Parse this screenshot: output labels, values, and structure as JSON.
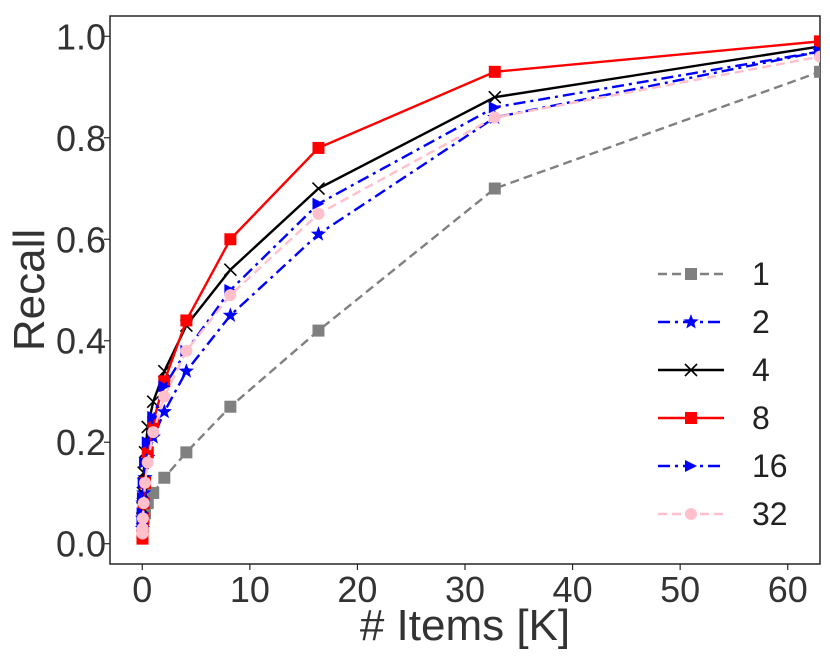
{
  "chart_data": {
    "type": "line",
    "title": "",
    "xlabel": "# Items [K]",
    "ylabel": "Recall",
    "xlim": [
      -3,
      63
    ],
    "ylim": [
      -0.04,
      1.04
    ],
    "xticks": [
      0,
      10,
      20,
      30,
      40,
      50,
      60
    ],
    "xtick_labels": [
      "0",
      "10",
      "20",
      "30",
      "40",
      "50",
      "60"
    ],
    "yticks": [
      0.0,
      0.2,
      0.4,
      0.6,
      0.8,
      1.0
    ],
    "ytick_labels": [
      "0.0",
      "0.2",
      "0.4",
      "0.6",
      "0.8",
      "1.0"
    ],
    "grid": false,
    "legend_position": "lower-right",
    "series": [
      {
        "name": "1",
        "color": "#808080",
        "dash": "dashed",
        "marker": "square",
        "x": [
          0.02,
          0.03,
          0.06,
          0.13,
          0.26,
          0.51,
          1.02,
          2.05,
          4.1,
          8.19,
          16.38,
          32.77,
          63
        ],
        "y": [
          0.02,
          0.03,
          0.04,
          0.05,
          0.06,
          0.08,
          0.1,
          0.13,
          0.18,
          0.27,
          0.42,
          0.7,
          0.93
        ]
      },
      {
        "name": "2",
        "color": "#0000ff",
        "dash": "dashdot",
        "marker": "star",
        "x": [
          0.02,
          0.03,
          0.06,
          0.13,
          0.26,
          0.51,
          1.02,
          2.05,
          4.1,
          8.19,
          16.38,
          32.77,
          63
        ],
        "y": [
          0.03,
          0.05,
          0.08,
          0.1,
          0.13,
          0.17,
          0.21,
          0.26,
          0.34,
          0.45,
          0.61,
          0.84,
          0.97
        ]
      },
      {
        "name": "4",
        "color": "#000000",
        "dash": "solid",
        "marker": "x",
        "x": [
          0.02,
          0.03,
          0.06,
          0.13,
          0.26,
          0.51,
          1.02,
          2.05,
          4.1,
          8.19,
          16.38,
          32.77,
          63
        ],
        "y": [
          0.05,
          0.07,
          0.1,
          0.14,
          0.18,
          0.23,
          0.28,
          0.34,
          0.43,
          0.54,
          0.7,
          0.88,
          0.98
        ]
      },
      {
        "name": "8",
        "color": "#ff0000",
        "dash": "solid",
        "marker": "square",
        "x": [
          0.02,
          0.03,
          0.06,
          0.13,
          0.26,
          0.51,
          1.02,
          2.05,
          4.1,
          8.19,
          16.38,
          32.77,
          63
        ],
        "y": [
          0.01,
          0.03,
          0.05,
          0.08,
          0.12,
          0.18,
          0.24,
          0.32,
          0.44,
          0.6,
          0.78,
          0.93,
          0.99
        ]
      },
      {
        "name": "16",
        "color": "#0000ff",
        "dash": "dashdot",
        "marker": "triangle-right",
        "x": [
          0.02,
          0.03,
          0.06,
          0.13,
          0.26,
          0.51,
          1.02,
          2.05,
          4.1,
          8.19,
          16.38,
          32.77,
          63
        ],
        "y": [
          0.04,
          0.06,
          0.09,
          0.12,
          0.16,
          0.2,
          0.25,
          0.31,
          0.38,
          0.5,
          0.67,
          0.86,
          0.97
        ]
      },
      {
        "name": "32",
        "color": "#ffc0cb",
        "dash": "dashed",
        "marker": "circle",
        "x": [
          0.02,
          0.03,
          0.06,
          0.13,
          0.26,
          0.51,
          1.02,
          2.05,
          4.1,
          8.19,
          16.38,
          32.77,
          63
        ],
        "y": [
          0.02,
          0.03,
          0.05,
          0.08,
          0.12,
          0.16,
          0.22,
          0.29,
          0.38,
          0.49,
          0.65,
          0.84,
          0.96
        ]
      }
    ]
  }
}
